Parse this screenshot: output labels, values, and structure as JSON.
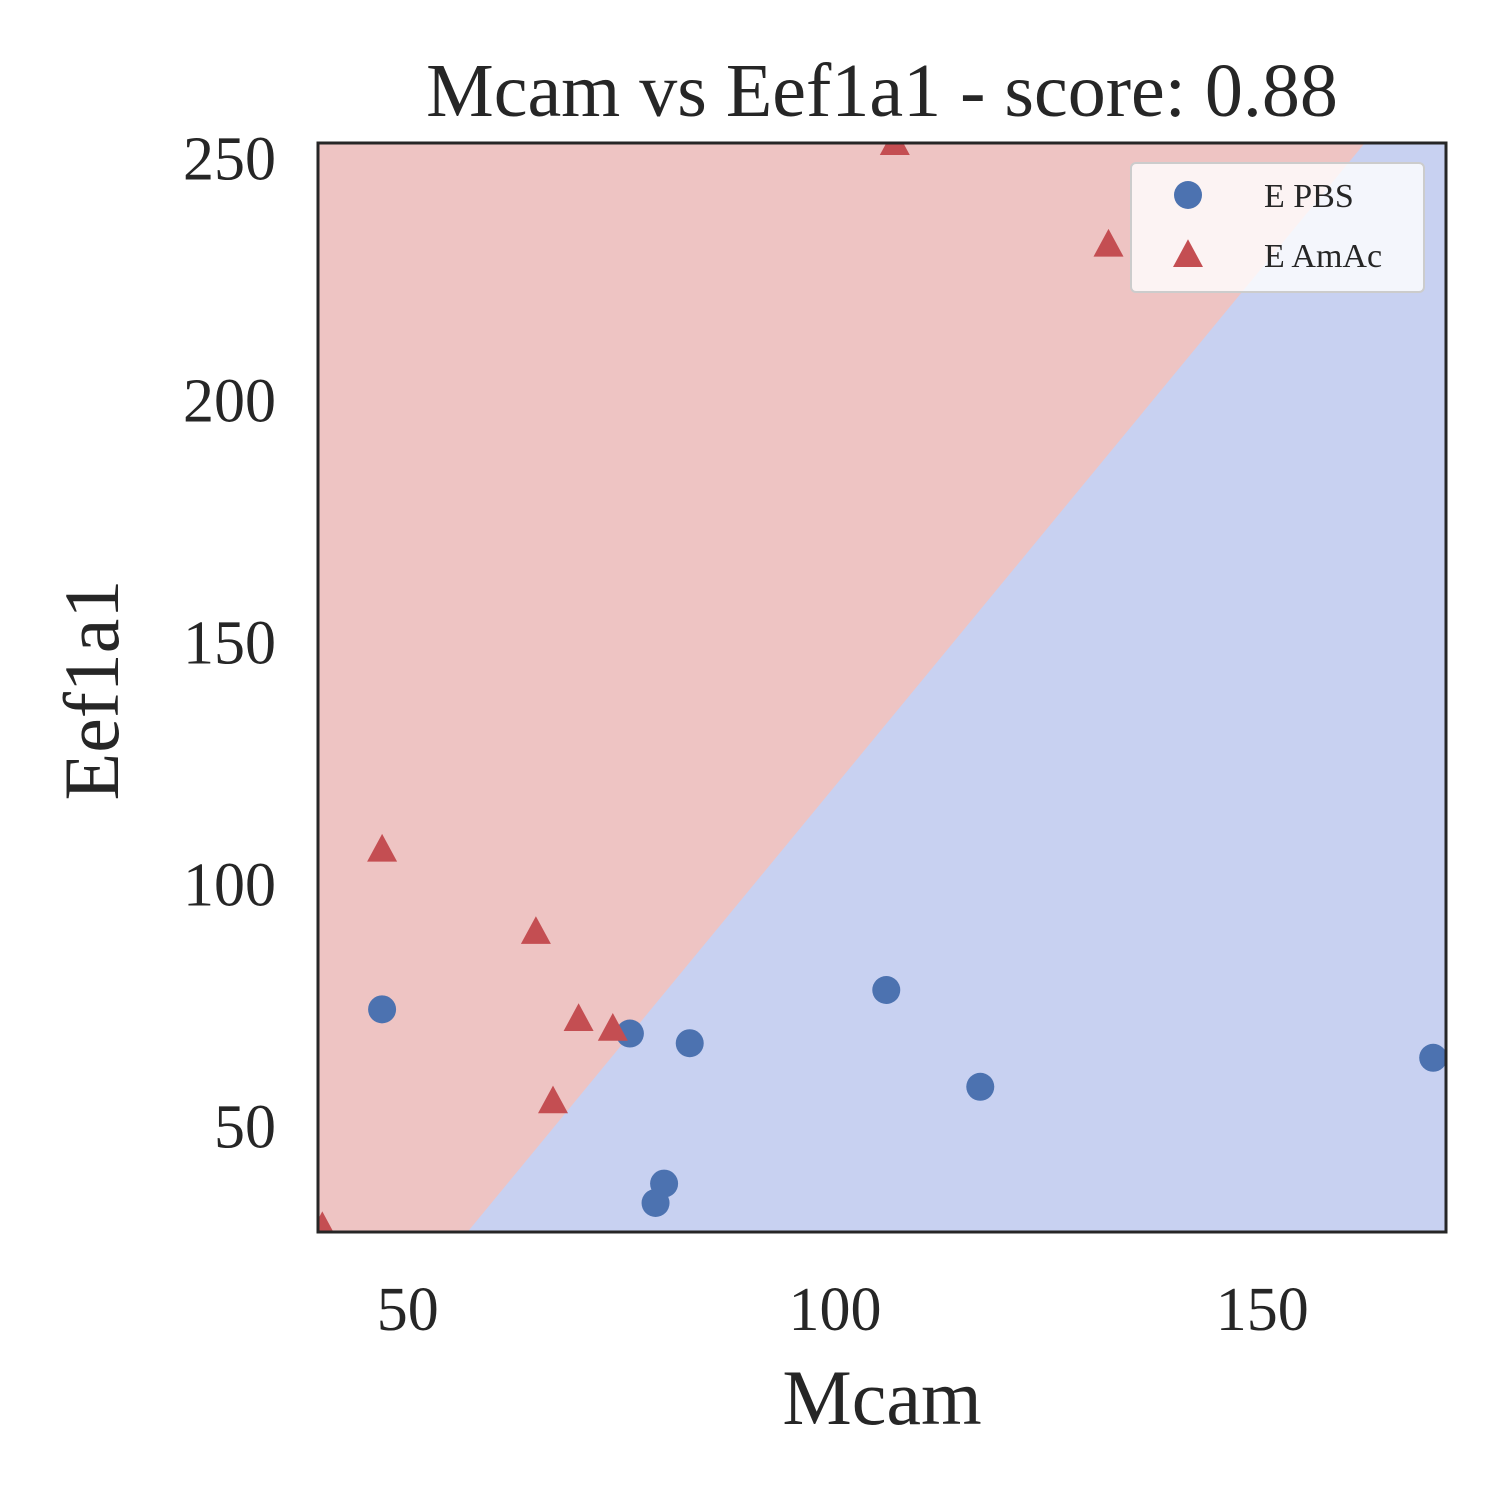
{
  "chart_data": {
    "type": "scatter",
    "title": "Mcam vs Eef1a1 - score: 0.88",
    "xlabel": "Mcam",
    "ylabel": "Eef1a1",
    "xlim": [
      39.5,
      171.5
    ],
    "ylim": [
      28,
      253
    ],
    "xticks": [
      50,
      100,
      150
    ],
    "yticks": [
      50,
      100,
      150,
      200,
      250
    ],
    "grid": false,
    "legend_position": "top-right",
    "decision_regions": {
      "boundary_points": [
        [
          57,
          28
        ],
        [
          162,
          253
        ]
      ],
      "upper_left_class": "E AmAc",
      "lower_right_class": "E PBS",
      "colors": {
        "E AmAc": "#eec4c3",
        "E PBS": "#c8d1f1"
      }
    },
    "series": [
      {
        "name": "E PBS",
        "marker": "circle",
        "color": "#4c72b0",
        "points": [
          [
            47,
            74
          ],
          [
            76,
            69
          ],
          [
            83,
            67
          ],
          [
            80,
            38
          ],
          [
            79,
            34
          ],
          [
            106,
            78
          ],
          [
            117,
            58
          ],
          [
            170,
            64
          ]
        ]
      },
      {
        "name": "E AmAc",
        "marker": "triangle",
        "color": "#c44e52",
        "points": [
          [
            47,
            107
          ],
          [
            65,
            90
          ],
          [
            70,
            72
          ],
          [
            74,
            70
          ],
          [
            67,
            55
          ],
          [
            107,
            253
          ],
          [
            132,
            232
          ],
          [
            40,
            29
          ]
        ]
      }
    ]
  }
}
